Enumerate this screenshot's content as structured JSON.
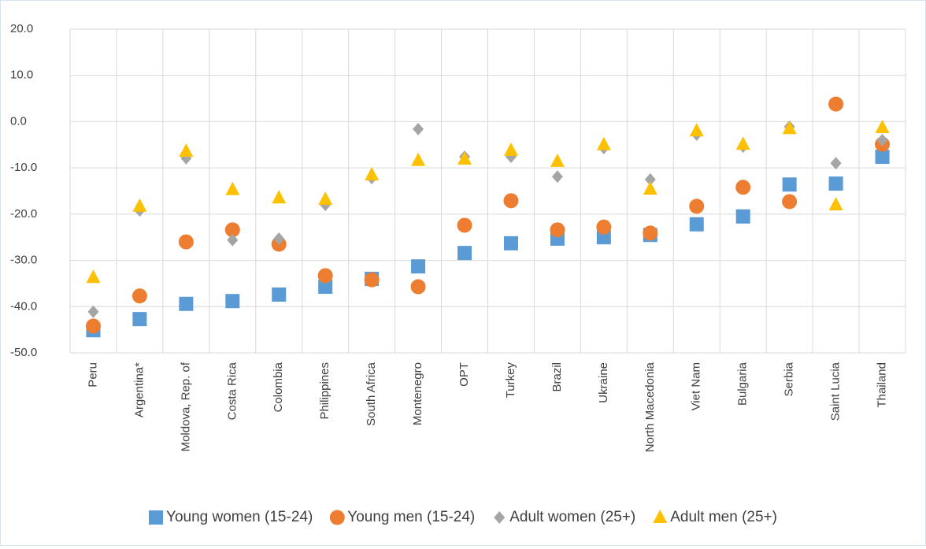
{
  "chart_data": {
    "type": "scatter",
    "categories": [
      "Peru",
      "Argentina*",
      "Moldova, Rep. of",
      "Costa Rica",
      "Colombia",
      "Philippines",
      "South Africa",
      "Montenegro",
      "OPT",
      "Turkey",
      "Brazil",
      "Ukraine",
      "North Macedonia",
      "Viet Nam",
      "Bulgaria",
      "Serbia",
      "Saint Lucia",
      "Thailand"
    ],
    "series": [
      {
        "name": "Young women (15-24)",
        "color": "#5b9bd5",
        "marker": "square",
        "values": [
          -45.1,
          -42.7,
          -39.4,
          -38.8,
          -37.4,
          -35.7,
          -34.0,
          -31.3,
          -28.4,
          -26.3,
          -25.3,
          -25.0,
          -24.5,
          -22.2,
          -20.5,
          -13.6,
          -13.4,
          -7.6
        ]
      },
      {
        "name": "Young men (15-24)",
        "color": "#ed7d31",
        "marker": "circle",
        "values": [
          -44.2,
          -37.7,
          -26.0,
          -23.4,
          -26.5,
          -33.3,
          -34.2,
          -35.7,
          -22.4,
          -17.1,
          -23.4,
          -22.8,
          -24.1,
          -18.3,
          -14.2,
          -17.3,
          3.8,
          -4.9
        ]
      },
      {
        "name": "Adult women (25+)",
        "color": "#a5a5a5",
        "marker": "diamond",
        "values": [
          -41.1,
          -19.2,
          -7.9,
          -25.6,
          -25.3,
          -18.0,
          -12.2,
          -1.6,
          -7.6,
          -7.6,
          -11.9,
          -5.7,
          -12.5,
          -2.8,
          -5.4,
          -1.1,
          -9.0,
          -4.0
        ]
      },
      {
        "name": "Adult men (25+)",
        "color": "#ffc000",
        "marker": "triangle",
        "values": [
          -33.7,
          -18.3,
          -6.4,
          -14.7,
          -16.5,
          -16.8,
          -11.5,
          -8.4,
          -8.1,
          -6.2,
          -8.6,
          -5.0,
          -14.6,
          -2.0,
          -4.9,
          -1.5,
          -18.0,
          -1.3
        ]
      }
    ],
    "ylim": [
      -50,
      20
    ],
    "yticks": [
      {
        "value": -50,
        "label": "-50.0"
      },
      {
        "value": -40,
        "label": "-40.0"
      },
      {
        "value": -30,
        "label": "-30.0"
      },
      {
        "value": -20,
        "label": "-20.0"
      },
      {
        "value": -10,
        "label": "-10.0"
      },
      {
        "value": 0,
        "label": "0.0"
      },
      {
        "value": 10,
        "label": "10.0"
      },
      {
        "value": 20,
        "label": "20.0"
      }
    ],
    "grid": true,
    "legend": "bottom"
  }
}
